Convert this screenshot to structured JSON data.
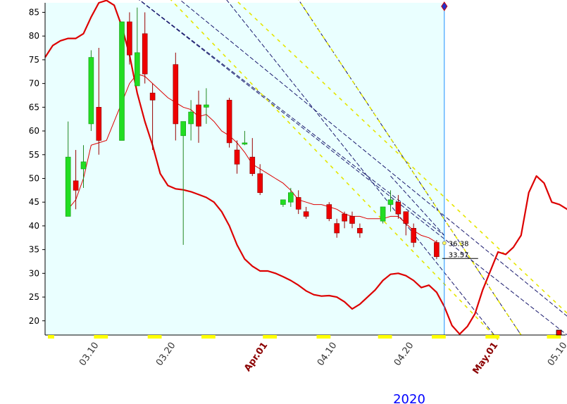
{
  "chart_data": {
    "type": "candlestick",
    "year_label": "2020",
    "ylim": [
      17,
      87
    ],
    "y_ticks": [
      20,
      25,
      30,
      35,
      40,
      45,
      50,
      55,
      60,
      65,
      70,
      75,
      80,
      85
    ],
    "x_ticks": [
      {
        "label": "03.10",
        "day": 7,
        "color": "#333333",
        "bold": false
      },
      {
        "label": "03.20",
        "day": 17,
        "color": "#333333",
        "bold": false
      },
      {
        "label": "Apr.01",
        "day": 29,
        "color": "#8b0000",
        "bold": true
      },
      {
        "label": "04.10",
        "day": 38,
        "color": "#333333",
        "bold": false
      },
      {
        "label": "04.20",
        "day": 48,
        "color": "#333333",
        "bold": false
      },
      {
        "label": "May.01",
        "day": 59,
        "color": "#8b0000",
        "bold": true
      },
      {
        "label": "05.10",
        "day": 68,
        "color": "#333333",
        "bold": false
      }
    ],
    "candles": [
      {
        "day": 3,
        "open": 42,
        "high": 62,
        "low": 42,
        "close": 54.5
      },
      {
        "day": 4,
        "open": 49.5,
        "high": 56,
        "low": 43.5,
        "close": 47.5
      },
      {
        "day": 5,
        "open": 52,
        "high": 57,
        "low": 48,
        "close": 53.5
      },
      {
        "day": 6,
        "open": 61.5,
        "high": 77,
        "low": 60,
        "close": 75.5
      },
      {
        "day": 7,
        "open": 65,
        "high": 77.5,
        "low": 55,
        "close": 58
      },
      {
        "day": 10,
        "open": 58,
        "high": 83,
        "low": 58,
        "close": 83
      },
      {
        "day": 11,
        "open": 83,
        "high": 85,
        "low": 74,
        "close": 76
      },
      {
        "day": 12,
        "open": 69.5,
        "high": 86,
        "low": 69.5,
        "close": 76.5
      },
      {
        "day": 13,
        "open": 80.5,
        "high": 85,
        "low": 70,
        "close": 72
      },
      {
        "day": 14,
        "open": 68,
        "high": 70,
        "low": 56,
        "close": 66.5
      },
      {
        "day": 17,
        "open": 74,
        "high": 76.5,
        "low": 58,
        "close": 61.5
      },
      {
        "day": 18,
        "open": 59,
        "high": 62,
        "low": 36,
        "close": 62
      },
      {
        "day": 19,
        "open": 61.5,
        "high": 66.5,
        "low": 58,
        "close": 64
      },
      {
        "day": 20,
        "open": 65.5,
        "high": 68.5,
        "low": 57.5,
        "close": 61
      },
      {
        "day": 21,
        "open": 65,
        "high": 69,
        "low": 61.5,
        "close": 65.5
      },
      {
        "day": 24,
        "open": 66.5,
        "high": 67,
        "low": 56.5,
        "close": 57.5
      },
      {
        "day": 25,
        "open": 56,
        "high": 58,
        "low": 51,
        "close": 53
      },
      {
        "day": 26,
        "open": 57.5,
        "high": 60,
        "low": 57,
        "close": 57.5
      },
      {
        "day": 27,
        "open": 54.5,
        "high": 58.5,
        "low": 50.5,
        "close": 51
      },
      {
        "day": 28,
        "open": 51,
        "high": 53,
        "low": 46.5,
        "close": 47
      },
      {
        "day": 31,
        "open": 44.5,
        "high": 45.5,
        "low": 44,
        "close": 45.5
      },
      {
        "day": 32,
        "open": 45,
        "high": 48,
        "low": 44,
        "close": 47
      },
      {
        "day": 33,
        "open": 46,
        "high": 47.5,
        "low": 42.5,
        "close": 43.5
      },
      {
        "day": 34,
        "open": 43,
        "high": 44,
        "low": 41.5,
        "close": 42
      },
      {
        "day": 37,
        "open": 44.5,
        "high": 45,
        "low": 41,
        "close": 41.5
      },
      {
        "day": 38,
        "open": 40.5,
        "high": 41.5,
        "low": 37.5,
        "close": 38.5
      },
      {
        "day": 39,
        "open": 42.5,
        "high": 43,
        "low": 39.5,
        "close": 41
      },
      {
        "day": 40,
        "open": 42,
        "high": 43,
        "low": 39.5,
        "close": 40.5
      },
      {
        "day": 41,
        "open": 39.5,
        "high": 40.5,
        "low": 37.5,
        "close": 38.5
      },
      {
        "day": 44,
        "open": 41,
        "high": 44,
        "low": 40.5,
        "close": 44
      },
      {
        "day": 45,
        "open": 44.5,
        "high": 47.5,
        "low": 43,
        "close": 45.5
      },
      {
        "day": 46,
        "open": 45,
        "high": 46.5,
        "low": 41.5,
        "close": 42.5
      },
      {
        "day": 47,
        "open": 43,
        "high": 43,
        "low": 38,
        "close": 40.5
      },
      {
        "day": 48,
        "open": 39.5,
        "high": 40.5,
        "low": 35.5,
        "close": 36.5
      },
      {
        "day": 51,
        "open": 36.5,
        "high": 37,
        "low": 33,
        "close": 33.5
      }
    ],
    "moving_average": [
      [
        3,
        43.5
      ],
      [
        4,
        45.5
      ],
      [
        5,
        50
      ],
      [
        6,
        57
      ],
      [
        7,
        57.5
      ],
      [
        8,
        58
      ],
      [
        9,
        62
      ],
      [
        10,
        66
      ],
      [
        11,
        70
      ],
      [
        12,
        72
      ],
      [
        13,
        71.5
      ],
      [
        14,
        70
      ],
      [
        15,
        68.5
      ],
      [
        16,
        67
      ],
      [
        17,
        66
      ],
      [
        18,
        65
      ],
      [
        19,
        64.5
      ],
      [
        20,
        63
      ],
      [
        21,
        63.5
      ],
      [
        22,
        62
      ],
      [
        23,
        60
      ],
      [
        24,
        59
      ],
      [
        25,
        57.5
      ],
      [
        26,
        55.5
      ],
      [
        27,
        53
      ],
      [
        28,
        52
      ],
      [
        29,
        51
      ],
      [
        30,
        50
      ],
      [
        31,
        49
      ],
      [
        32,
        47.5
      ],
      [
        33,
        45.5
      ],
      [
        34,
        45
      ],
      [
        35,
        44.5
      ],
      [
        36,
        44.5
      ],
      [
        37,
        44
      ],
      [
        38,
        43.5
      ],
      [
        39,
        42.5
      ],
      [
        40,
        42
      ],
      [
        41,
        42
      ],
      [
        42,
        41.5
      ],
      [
        43,
        41.5
      ],
      [
        44,
        41.5
      ],
      [
        45,
        42
      ],
      [
        46,
        42
      ],
      [
        47,
        40.5
      ],
      [
        48,
        39
      ],
      [
        49,
        38
      ],
      [
        50,
        37.5
      ],
      [
        51,
        36.5
      ]
    ],
    "lower_curve": [
      [
        0,
        75.5
      ],
      [
        1,
        78
      ],
      [
        2,
        79
      ],
      [
        3,
        79.5
      ],
      [
        4,
        79.5
      ],
      [
        5,
        80.5
      ],
      [
        6,
        84
      ],
      [
        7,
        87
      ],
      [
        8,
        87.5
      ],
      [
        9,
        86.5
      ],
      [
        10,
        82
      ],
      [
        11,
        76
      ],
      [
        12,
        68
      ],
      [
        13,
        62
      ],
      [
        14,
        57
      ],
      [
        15,
        51
      ],
      [
        16,
        48.5
      ],
      [
        17,
        47.8
      ],
      [
        18,
        47.6
      ],
      [
        19,
        47.2
      ],
      [
        20,
        46.6
      ],
      [
        21,
        46
      ],
      [
        22,
        45
      ],
      [
        23,
        43
      ],
      [
        24,
        40
      ],
      [
        25,
        36
      ],
      [
        26,
        33
      ],
      [
        27,
        31.5
      ],
      [
        28,
        30.5
      ],
      [
        29,
        30.5
      ],
      [
        30,
        30
      ],
      [
        31,
        29.3
      ],
      [
        32,
        28.5
      ],
      [
        33,
        27.5
      ],
      [
        34,
        26.3
      ],
      [
        35,
        25.5
      ],
      [
        36,
        25.2
      ],
      [
        37,
        25.3
      ],
      [
        38,
        25
      ],
      [
        39,
        24
      ],
      [
        40,
        22.5
      ],
      [
        41,
        23.5
      ],
      [
        42,
        25
      ],
      [
        43,
        26.5
      ],
      [
        44,
        28.5
      ],
      [
        45,
        29.8
      ],
      [
        46,
        30
      ],
      [
        47,
        29.5
      ],
      [
        48,
        28.5
      ],
      [
        49,
        27
      ],
      [
        50,
        27.5
      ],
      [
        51,
        26
      ],
      [
        52,
        23
      ],
      [
        53,
        19
      ],
      [
        54,
        17.2
      ],
      [
        55,
        18.8
      ],
      [
        56,
        21.5
      ],
      [
        57,
        26.5
      ],
      [
        58,
        30.5
      ],
      [
        59,
        34.5
      ],
      [
        60,
        34
      ],
      [
        61,
        35.5
      ],
      [
        62,
        38
      ],
      [
        63,
        47
      ],
      [
        64,
        50.5
      ],
      [
        65,
        49
      ],
      [
        66,
        45
      ],
      [
        67,
        44.5
      ],
      [
        68,
        43.5
      ],
      [
        69,
        43
      ],
      [
        70,
        46.5
      ]
    ],
    "trend_lines": [
      {
        "style": "navy-dash",
        "from": [
          8,
          93
        ],
        "to": [
          52,
          38
        ]
      },
      {
        "style": "navy-dash",
        "from": [
          8,
          93
        ],
        "to": [
          68,
          17
        ]
      },
      {
        "style": "navy-dash",
        "from": [
          12,
          95
        ],
        "to": [
          71,
          17
        ]
      },
      {
        "style": "navy-dash",
        "from": [
          20,
          95
        ],
        "to": [
          59,
          16
        ]
      },
      {
        "style": "navy-dash",
        "from": [
          30,
          95
        ],
        "to": [
          62,
          17
        ]
      },
      {
        "style": "yellow-dash",
        "from": [
          12,
          95
        ],
        "to": [
          59,
          16
        ]
      },
      {
        "style": "yellow-dash",
        "from": [
          20,
          95
        ],
        "to": [
          71,
          17
        ]
      },
      {
        "style": "yellow-dash",
        "from": [
          30,
          95
        ],
        "to": [
          62,
          17
        ]
      },
      {
        "style": "navy-dash",
        "from": [
          45,
          50.5
        ],
        "to": [
          52,
          38
        ]
      }
    ],
    "shaded_region": {
      "from_day": 0,
      "to_day": 52,
      "color": "#eaffff"
    },
    "cursor_line_day": 52,
    "annotations": [
      {
        "text": "36.38",
        "day": 52,
        "value": 36.38
      },
      {
        "text": "33.57",
        "day": 52,
        "value": 33.57
      }
    ],
    "colors": {
      "bull": "#22dd22",
      "bear": "#ee0000",
      "curve": "#dd0000",
      "cursor": "#1e90ff",
      "marker": "#ffff00"
    }
  }
}
